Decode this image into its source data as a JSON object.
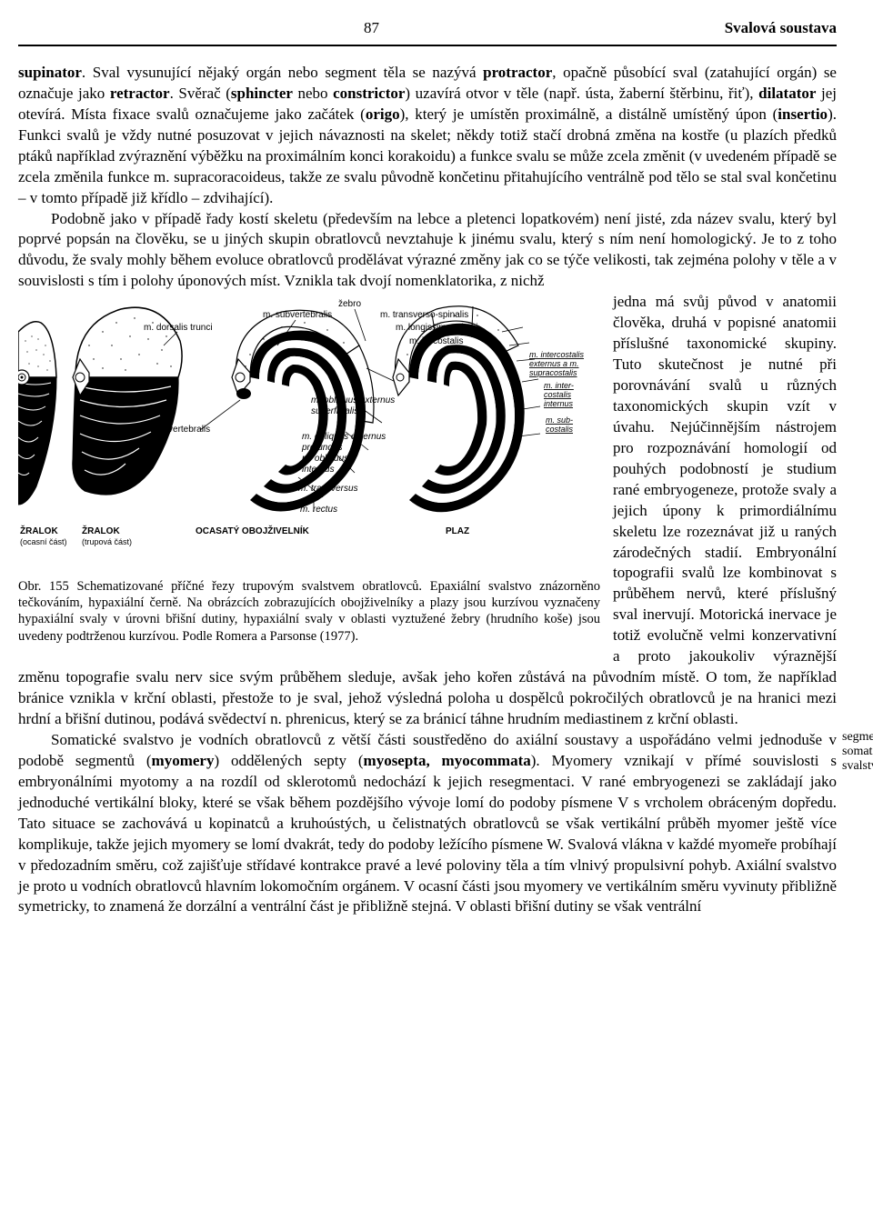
{
  "header": {
    "page_number": "87",
    "section_title": "Svalová soustava"
  },
  "paragraphs": {
    "p1_html": "<b>supinator</b>. Sval vysunující nějaký orgán nebo segment těla se nazývá <b>protractor</b>, opačně působící sval (zatahující orgán) se označuje jako <b>retractor</b>. Svěrač (<b>sphincter</b> nebo <b>constrictor</b>) uzavírá otvor v těle (např. ústa, žaberní štěrbinu, řiť), <b>dilatator</b> jej otevírá. Místa fixace svalů označujeme jako začátek (<b>origo</b>), který je umístěn proximálně, a distálně umístěný úpon (<b>insertio</b>). Funkci svalů je vždy nutné posuzovat v jejich návaznosti na skelet; někdy totiž stačí drobná změna na kostře (u plazích předků ptáků například zvýraznění výběžku na proximálním konci korakoidu) a funkce svalu se může zcela změnit (v uvedeném případě se zcela změnila funkce m. supracoracoideus, takže ze svalu původně končetinu přitahujícího ventrálně pod tělo se stal sval končetinu – v tomto případě již křídlo – zdvihající).",
    "p2_html": "Podobně jako v případě řady kostí skeletu (především na lebce a pletenci lopatkovém) není jisté, zda název svalu, který byl poprvé popsán na člověku, se u jiných skupin obratlovců nevztahuje k jinému svalu, který s ním není homologický. Je to z toho důvodu, že svaly mohly během evoluce obratlovců prodělávat výrazné změny jak co se týče velikosti, tak zejména polohy v těle a v souvislosti s tím i polohy úponových míst. Vznikla tak dvojí nomenklatorika, z nichž",
    "wrap_html": "jedna má svůj původ v anatomii člověka, druhá v popisné anatomii příslušné taxonomické skupiny. Tuto skutečnost je nutné při porovnávání svalů u různých taxonomických skupin vzít v úvahu. Nejúčinnějším nástrojem pro rozpoznávání homologií od pouhých podobností je studium rané embryogeneze, protože svaly a jejich úpony k primordiálnímu skeletu lze rozeznávat již u raných zárodečných stadií. Embryonální topografii svalů lze kombinovat s průběhem nervů, které příslušný sval inervují. Motorická inervace je totiž evolučně velmi konzervativní a proto jakoukoliv výraznější změnu topografie svalu nerv sice svým průběhem sleduje, avšak jeho kořen zůstává na původním místě. O tom, že například bránice vznikla v krční oblasti, přestože to je sval, jehož výsledná poloha u dospělců pokročilých obratlovců je na hranici mezi hrdní a břišní dutinou, podává svědectví n. phrenicus, který se za bránicí táhne hrudním mediastinem z krční oblasti.",
    "p3_html": "Somatické svalstvo je vodních obratlovců z větší části soustředěno do axiální soustavy a uspořádáno velmi jednoduše v podobě segmentů (<b>myomery</b>) oddělených septy (<b>myosepta, myocommata</b>). Myomery vznikají v přímé souvislosti s embryonálními myotomy a na rozdíl od sklerotomů nedochází k jejich resegmentaci. V rané embryogenezi se zakládají jako jednoduché vertikální bloky, které se však během pozdějšího vývoje lomí do podoby písmene V s vrcholem obráceným dopředu. Tato situace se zachovává u kopinatců a kruhoústých, u čelistnatých obratlovců se však vertikální průběh myomer ještě více komplikuje, takže jejich myomery se lomí dvakrát, tedy do podoby ležícího písmene W. Svalová vlákna v každé myomeře probíhají v předozadním směru, což zajišťuje střídavé kontrakce pravé a levé poloviny těla a tím vlnivý propulsivní pohyb. Axiální svalstvo je proto u vodních obratlovců hlavním lokomočním orgánem. V ocasní části jsou myomery ve vertikálním směru vyvinuty přibližně symetricky, to znamená že dorzální a ventrální část je přibližně stejná. V oblasti břišní dutiny se však ventrální"
  },
  "side_note": {
    "line1": "segmentace",
    "line2": "somatického",
    "line3": "svalstva"
  },
  "figure": {
    "title": "Obr. 155",
    "caption_html": "Obr. 155 Schematizované příčné řezy trupovým svalstvem obratlovců. Epaxiální svalstvo znázorněno tečkováním, hypaxiální černě. Na obrázcích zobrazujících obojživelníky a plazy jsou kurzívou vyznačeny hypaxiální svaly v úrovni břišní dutiny, hypaxiální svaly v oblasti vyztužené žebry (hrudního koše) jsou uvedeny podtrženou kurzívou. Podle Romera a Parsonse (1977).",
    "labels": {
      "zralok_ocas": "ŽRALOK",
      "zralok_ocas_sub": "(ocasní část)",
      "zralok_trup": "ŽRALOK",
      "zralok_trup_sub": "(trupová část)",
      "obojzivelnik": "OCASATÝ OBOJŽIVELNÍK",
      "plaz": "PLAZ",
      "zebro": "žebro",
      "m_subvertebralis": "m. subvertebralis",
      "m_dorsalis_trunci": "m. dorsalis trunci",
      "m_subvertebralis2": "m. subvertebralis",
      "m_transverso_spinalis": "m. transverso-spinalis",
      "m_longissimus_dorsi": "m. longissimus dorsi",
      "m_iliocostalis": "m. iliocostalis",
      "m_intercostalis_ext": "m. intercostalis",
      "externus_a_m": "externus a m.",
      "supracostalis": "supracostalis",
      "m_intercostalis2": "m. inter-",
      "costalis": "costalis",
      "internus": "internus",
      "m_subcostalis": "m. sub-",
      "costalis2": "costalis",
      "m_obliquus_ext_sup": "m. obliquus externus",
      "superficialis": "superficialis",
      "m_obliquus_ext_prof": "m. obliquus externus",
      "profundus": "profundus",
      "m_obliquus_int": "m. obliquus",
      "internus2": "internus",
      "m_transversus": "m. transversus",
      "m_rectus": "m. rectus"
    }
  }
}
